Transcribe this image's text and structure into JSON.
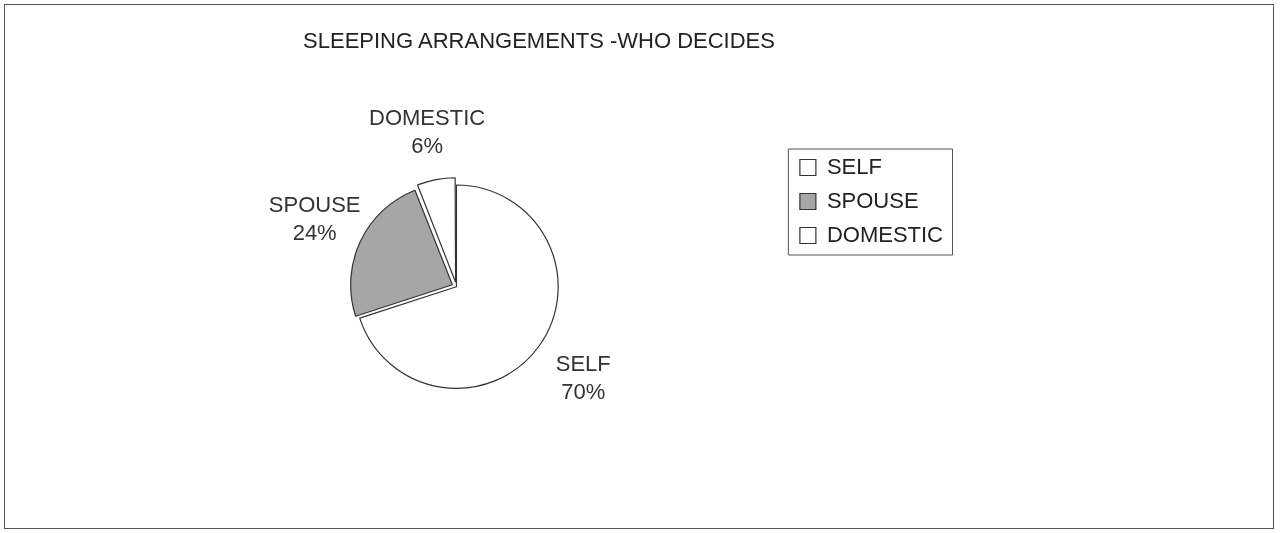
{
  "chart_data": {
    "type": "pie",
    "title": "SLEEPING ARRANGEMENTS -WHO DECIDES",
    "categories": [
      "SELF",
      "SPOUSE",
      "DOMESTIC"
    ],
    "values": [
      70,
      24,
      6
    ],
    "colors": [
      "#ffffff",
      "#a6a6a6",
      "#ffffff"
    ],
    "value_labels": [
      "70%",
      "24%",
      "6%"
    ],
    "legend": "right"
  }
}
